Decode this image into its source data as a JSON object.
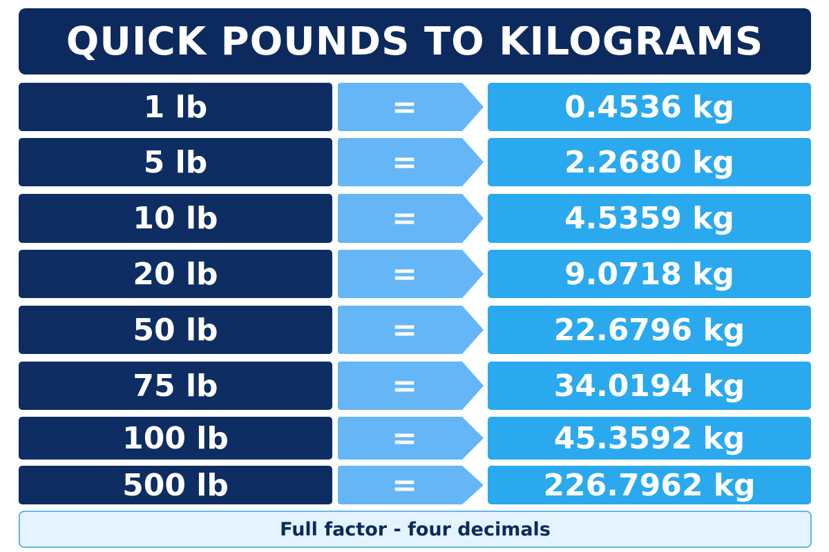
{
  "header": {
    "title": "QUICK POUNDS TO KILOGRAMS"
  },
  "table": {
    "rows": [
      [
        "1 lb",
        "=",
        "0.4536 kg"
      ],
      [
        "5 lb",
        "=",
        "2.2680 kg"
      ],
      [
        "10 lb",
        "=",
        "4.5359 kg"
      ],
      [
        "20 lb",
        "=",
        "9.0718 kg"
      ],
      [
        "50 lb",
        "=",
        "22.6796 kg"
      ],
      [
        "75 lb",
        "=",
        "34.0194 kg"
      ],
      [
        "100 lb",
        "=",
        "45.3592 kg"
      ],
      [
        "500 lb",
        "=",
        "226.7962 kg"
      ]
    ]
  },
  "footer": {
    "note": "Full factor - four decimals"
  }
}
